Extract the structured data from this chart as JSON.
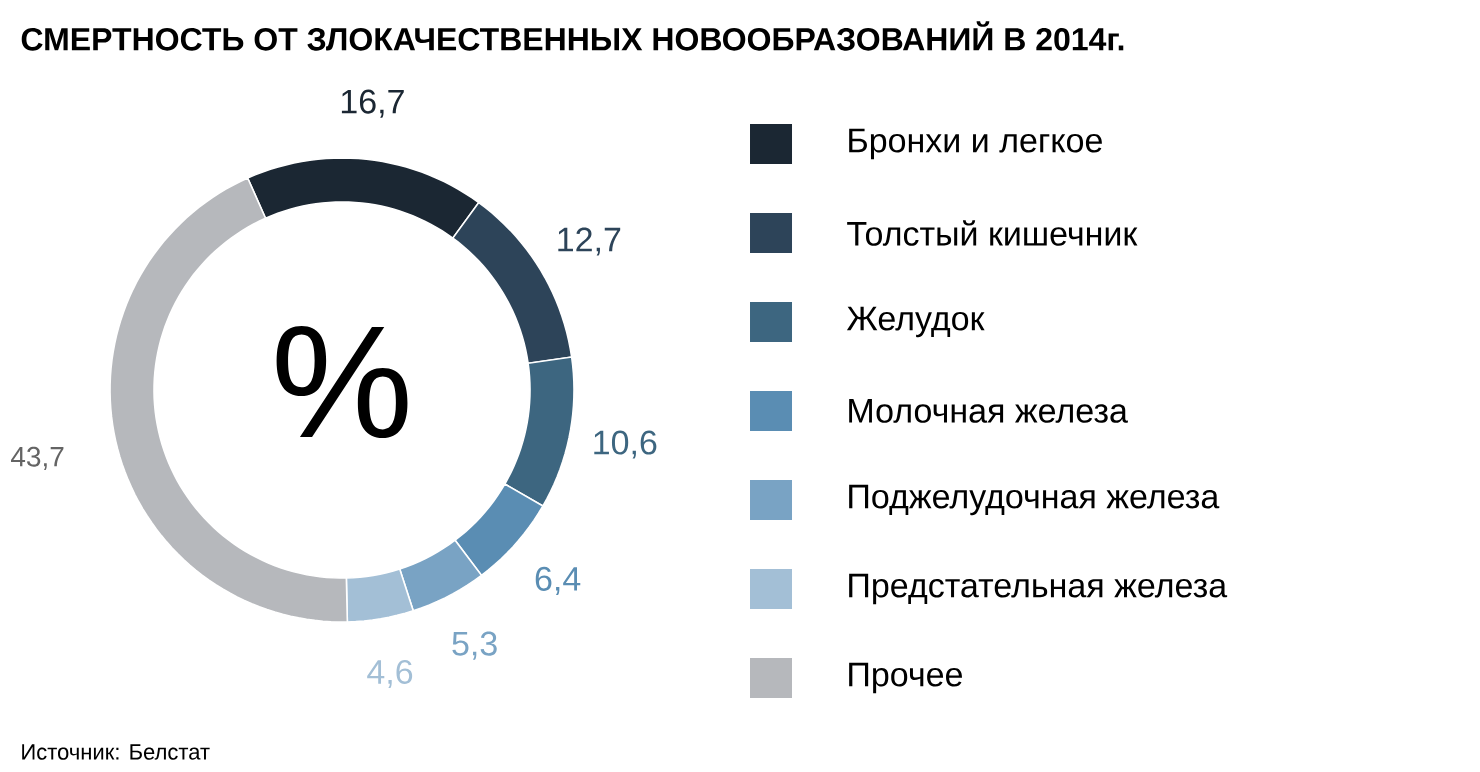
{
  "chart_data": {
    "type": "donut",
    "title": "СМЕРТНОСТЬ ОТ ЗЛОКАЧЕСТВЕННЫХ НОВООБРАЗОВАНИЙ В 2014г.",
    "categories": [
      "Бронхи и легкое",
      "Толстый кишечник",
      "Желудок",
      "Молочная железа",
      "Поджелудочная железа",
      "Предстательная железа",
      "Прочее"
    ],
    "values": [
      16.7,
      12.7,
      10.6,
      6.4,
      5.3,
      4.6,
      43.7
    ],
    "value_labels": [
      "16,7",
      "12,7",
      "10,6",
      "6,4",
      "5,3",
      "4,6",
      "43,7"
    ],
    "colors": [
      "#1b2733",
      "#2d4459",
      "#3d6680",
      "#5a8db3",
      "#79a3c4",
      "#a3bfd6",
      "#b6b8bc"
    ],
    "legend": "right",
    "annotations": [
      "%",
      "Источник: Белстат"
    ]
  }
}
